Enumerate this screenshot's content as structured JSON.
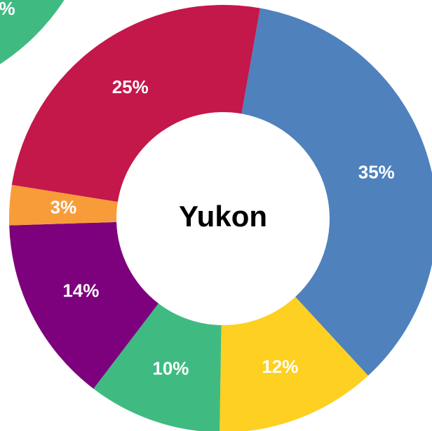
{
  "chart_data": {
    "type": "donut",
    "title": "Yukon",
    "categories": [
      "Blue",
      "Yellow",
      "Green",
      "Purple",
      "Orange",
      "Red"
    ],
    "values": [
      35,
      12,
      10,
      14,
      3,
      25
    ],
    "value_labels": [
      "35%",
      "12%",
      "10%",
      "14%",
      "3%",
      "25%"
    ],
    "colors": [
      "#4f81bd",
      "#fdd022",
      "#3fbb82",
      "#7d007d",
      "#f89c3a",
      "#c4174a"
    ],
    "annotations": [
      "%"
    ]
  }
}
